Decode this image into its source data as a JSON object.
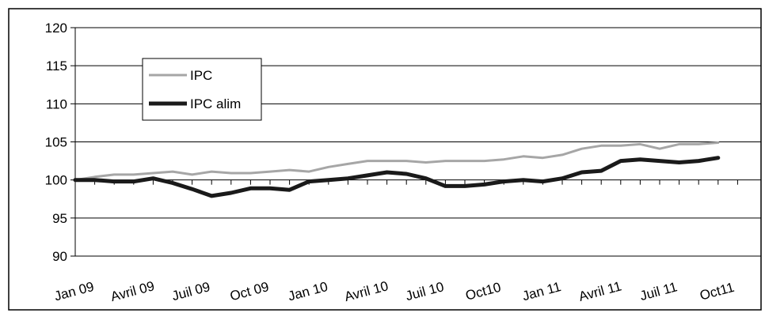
{
  "chart_data": {
    "type": "line",
    "title": "",
    "xlabel": "",
    "ylabel": "",
    "ylim": [
      90,
      120
    ],
    "yticks": [
      90,
      95,
      100,
      105,
      110,
      115,
      120
    ],
    "grid": "horizontal",
    "legend_position": "top-left",
    "x_tick_labels": [
      "Jan 09",
      "Avril 09",
      "Juil 09",
      "Oct 09",
      "Jan 10",
      "Avril 10",
      "Juil 10",
      "Oct10",
      "Jan 11",
      "Avril 11",
      "Juil 11",
      "Oct11"
    ],
    "series": [
      {
        "name": "IPC",
        "color": "#a6a6a6",
        "values": [
          100.0,
          100.4,
          100.7,
          100.7,
          100.9,
          101.1,
          100.7,
          101.1,
          100.9,
          100.9,
          101.1,
          101.3,
          101.1,
          101.7,
          102.1,
          102.5,
          102.5,
          102.5,
          102.3,
          102.5,
          102.5,
          102.5,
          102.7,
          103.1,
          102.9,
          103.3,
          104.1,
          104.5,
          104.5,
          104.7,
          104.1,
          104.7,
          104.7,
          104.9
        ]
      },
      {
        "name": "IPC alim",
        "color": "#1a1a1a",
        "values": [
          100.0,
          100.0,
          99.8,
          99.8,
          100.2,
          99.6,
          98.8,
          97.9,
          98.3,
          98.9,
          98.9,
          98.7,
          99.8,
          100.0,
          100.2,
          100.6,
          101.0,
          100.8,
          100.2,
          99.2,
          99.2,
          99.4,
          99.8,
          100.0,
          99.8,
          100.2,
          101.0,
          101.2,
          102.5,
          102.7,
          102.5,
          102.3,
          102.5,
          102.9
        ]
      }
    ]
  }
}
